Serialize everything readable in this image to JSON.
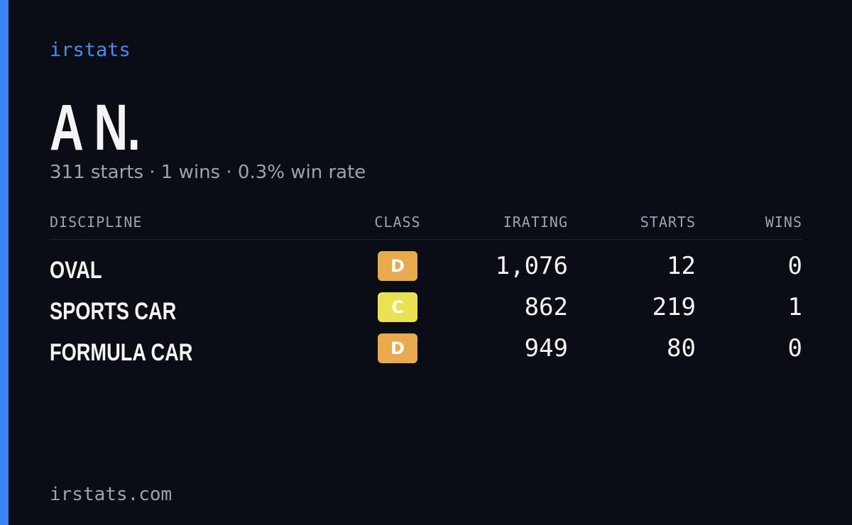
{
  "brand": "irstats",
  "name": "A N.",
  "summary": "311 starts · 1 wins · 0.3% win rate",
  "table": {
    "headers": [
      "DISCIPLINE",
      "CLASS",
      "IRATING",
      "STARTS",
      "WINS"
    ],
    "rows": [
      {
        "discipline": "OVAL",
        "class": {
          "label": "D",
          "color": "#e9a94d"
        },
        "irating": "1,076",
        "starts": "12",
        "wins": "0"
      },
      {
        "discipline": "SPORTS CAR",
        "class": {
          "label": "C",
          "color": "#ebe24f"
        },
        "irating": "862",
        "starts": "219",
        "wins": "1"
      },
      {
        "discipline": "FORMULA CAR",
        "class": {
          "label": "D",
          "color": "#e9a94d"
        },
        "irating": "949",
        "starts": "80",
        "wins": "0"
      }
    ]
  },
  "footer": "irstats.com"
}
